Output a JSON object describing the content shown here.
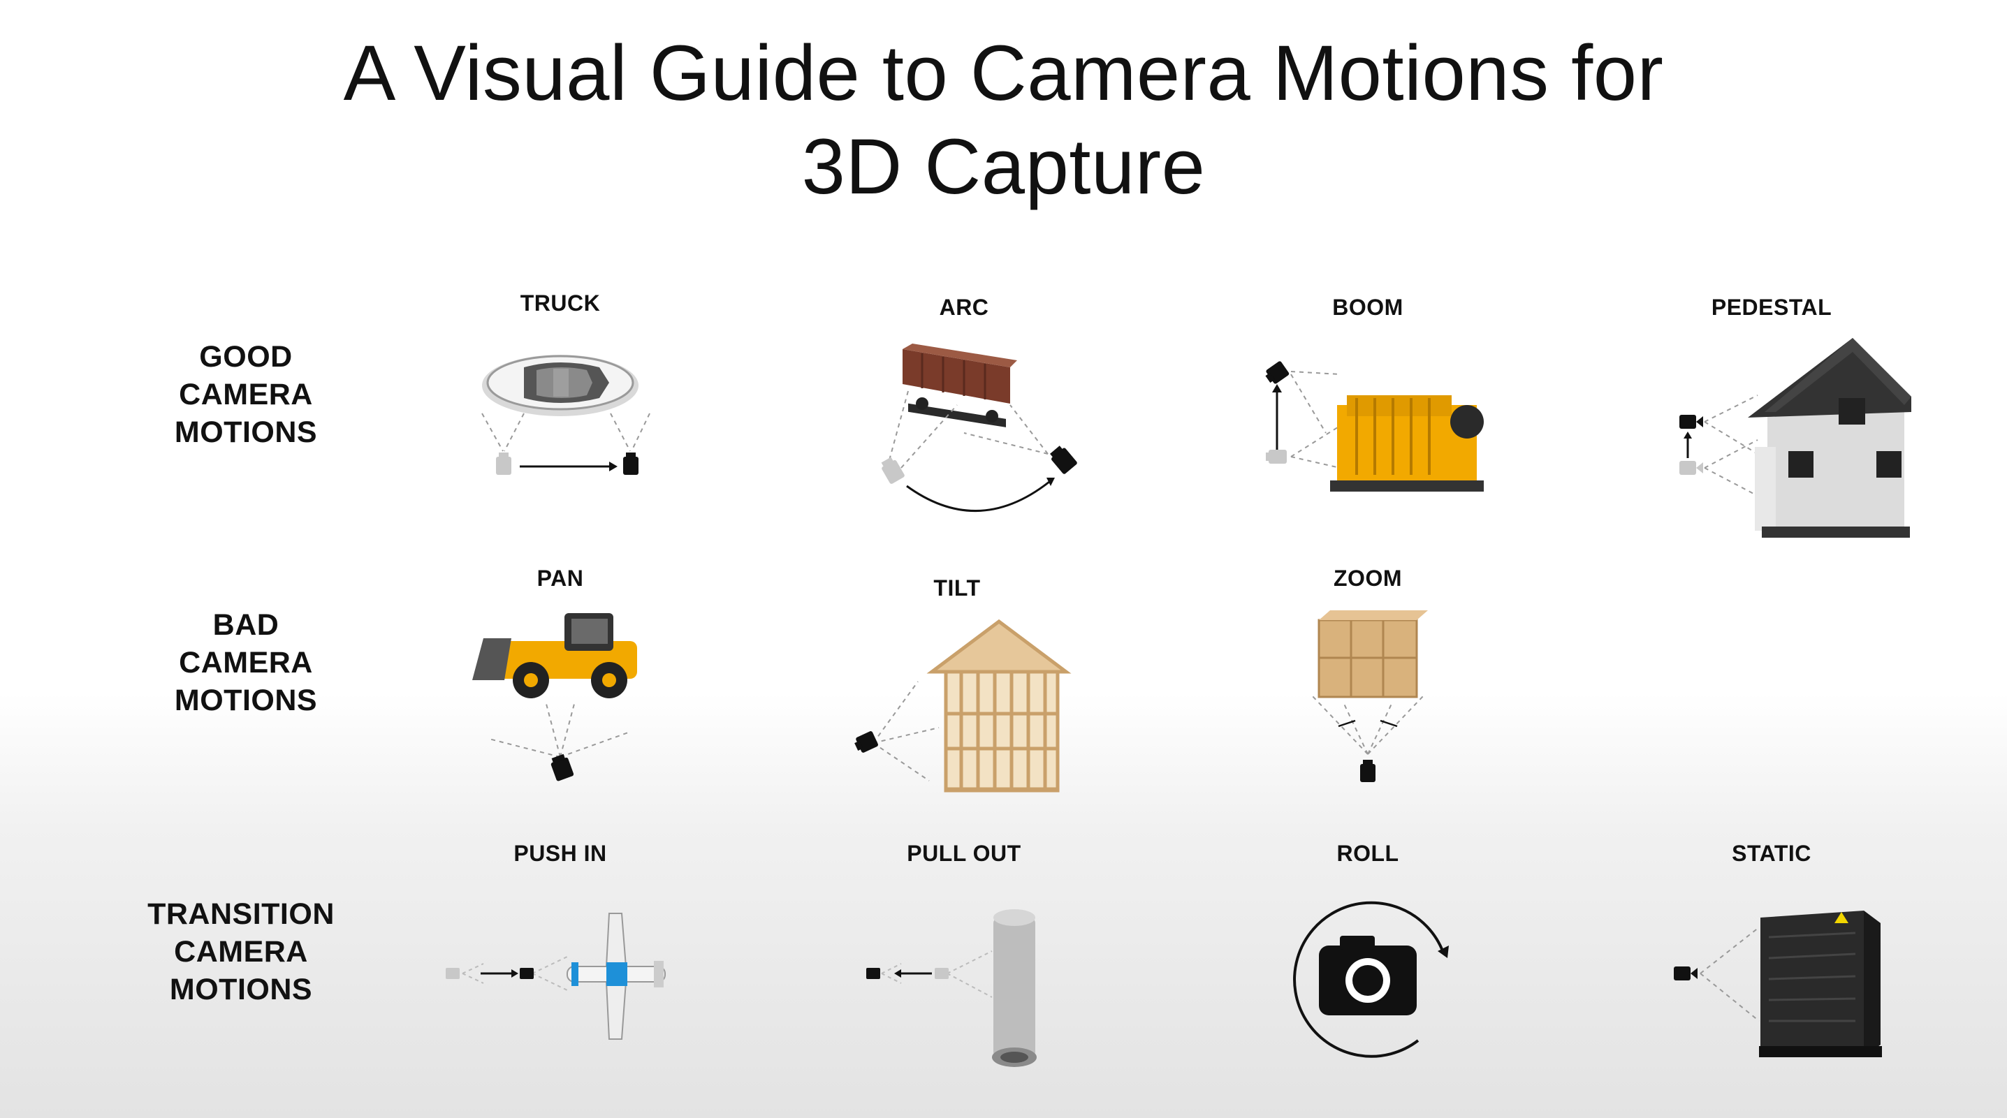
{
  "title": {
    "line1": "A Visual Guide to Camera Motions for",
    "line2": "3D Capture"
  },
  "rows": {
    "good": {
      "line1": "GOOD",
      "line2": "CAMERA",
      "line3": "MOTIONS"
    },
    "bad": {
      "line1": "BAD",
      "line2": "CAMERA",
      "line3": "MOTIONS"
    },
    "transition": {
      "line1": "TRANSITION",
      "line2": "CAMERA",
      "line3": "MOTIONS"
    }
  },
  "motions": {
    "truck": "TRUCK",
    "arc": "ARC",
    "boom": "BOOM",
    "pedestal": "PEDESTAL",
    "pan": "PAN",
    "tilt": "TILT",
    "zoom": "ZOOM",
    "push_in": "PUSH IN",
    "pull_out": "PULL OUT",
    "roll": "ROLL",
    "static": "STATIC"
  },
  "colors": {
    "camera_active": "#111111",
    "camera_ghost": "#c8c8c8",
    "vehicle_yellow": "#f2a900",
    "railcar_brown": "#7a3b2a",
    "plane_blue": "#1e90d8",
    "wood": "#d9b27c"
  }
}
